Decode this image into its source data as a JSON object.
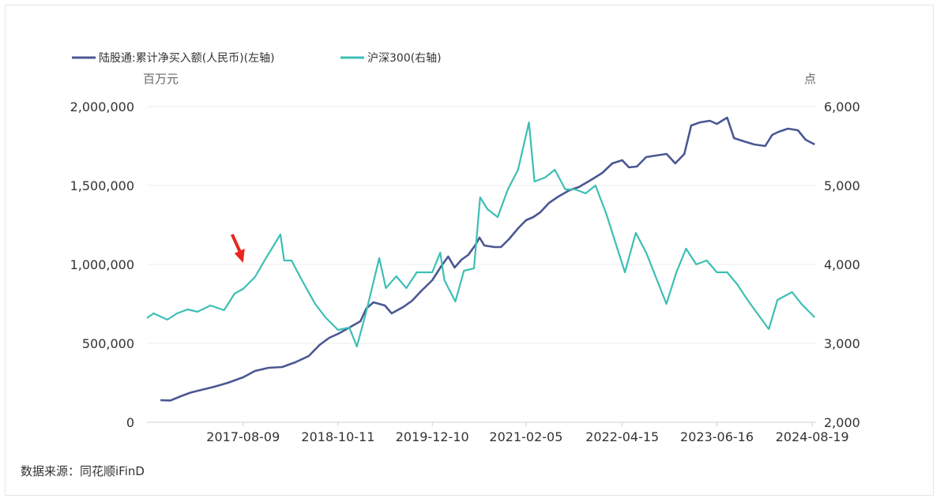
{
  "chart_data": {
    "type": "line",
    "left_unit": "百万元",
    "right_unit": "点",
    "x_tick_labels": [
      "2017-08-09",
      "2018-10-11",
      "2019-12-10",
      "2021-02-05",
      "2022-04-15",
      "2023-06-16",
      "2024-08-19"
    ],
    "y_left": {
      "ticks": [
        0,
        500000,
        1000000,
        1500000,
        2000000
      ],
      "tick_labels": [
        "0",
        "500,000",
        "1,000,000",
        "1,500,000",
        "2,000,000"
      ],
      "range": [
        0,
        2000000
      ]
    },
    "y_right": {
      "ticks": [
        2000,
        3000,
        4000,
        5000,
        6000
      ],
      "tick_labels": [
        "2,000",
        "3,000",
        "4,000",
        "5,000",
        "6,000"
      ],
      "range": [
        2000,
        6000
      ]
    },
    "x_range": [
      "2016-06-01",
      "2024-09-05"
    ],
    "grid": true,
    "legend_position": "top-left",
    "series": [
      {
        "name": "陆股通:累计净买入额(人民币)(左轴)",
        "axis": "left",
        "color": "#4b5793",
        "points": [
          [
            "2016-08-01",
            140000
          ],
          [
            "2016-09-15",
            138000
          ],
          [
            "2016-11-01",
            165000
          ],
          [
            "2016-12-15",
            188000
          ],
          [
            "2017-02-01",
            205000
          ],
          [
            "2017-04-01",
            225000
          ],
          [
            "2017-06-01",
            250000
          ],
          [
            "2017-08-09",
            285000
          ],
          [
            "2017-10-01",
            325000
          ],
          [
            "2017-12-01",
            345000
          ],
          [
            "2018-02-01",
            350000
          ],
          [
            "2018-04-01",
            380000
          ],
          [
            "2018-06-01",
            420000
          ],
          [
            "2018-07-20",
            490000
          ],
          [
            "2018-09-01",
            535000
          ],
          [
            "2018-10-11",
            560000
          ],
          [
            "2018-12-01",
            600000
          ],
          [
            "2019-01-20",
            640000
          ],
          [
            "2019-02-15",
            720000
          ],
          [
            "2019-03-20",
            760000
          ],
          [
            "2019-05-10",
            740000
          ],
          [
            "2019-06-10",
            690000
          ],
          [
            "2019-08-01",
            730000
          ],
          [
            "2019-09-10",
            770000
          ],
          [
            "2019-10-20",
            830000
          ],
          [
            "2019-12-10",
            900000
          ],
          [
            "2020-01-20",
            990000
          ],
          [
            "2020-02-20",
            1050000
          ],
          [
            "2020-03-20",
            980000
          ],
          [
            "2020-04-20",
            1030000
          ],
          [
            "2020-05-20",
            1060000
          ],
          [
            "2020-06-20",
            1120000
          ],
          [
            "2020-07-10",
            1170000
          ],
          [
            "2020-08-01",
            1120000
          ],
          [
            "2020-09-15",
            1110000
          ],
          [
            "2020-10-15",
            1110000
          ],
          [
            "2020-11-20",
            1160000
          ],
          [
            "2021-01-01",
            1230000
          ],
          [
            "2021-02-05",
            1280000
          ],
          [
            "2021-03-10",
            1300000
          ],
          [
            "2021-04-10",
            1330000
          ],
          [
            "2021-05-20",
            1390000
          ],
          [
            "2021-07-01",
            1430000
          ],
          [
            "2021-08-20",
            1470000
          ],
          [
            "2021-10-01",
            1490000
          ],
          [
            "2021-12-01",
            1540000
          ],
          [
            "2022-01-15",
            1580000
          ],
          [
            "2022-03-01",
            1640000
          ],
          [
            "2022-04-15",
            1660000
          ],
          [
            "2022-05-15",
            1615000
          ],
          [
            "2022-06-20",
            1620000
          ],
          [
            "2022-08-01",
            1680000
          ],
          [
            "2022-09-15",
            1690000
          ],
          [
            "2022-11-01",
            1700000
          ],
          [
            "2022-12-10",
            1640000
          ],
          [
            "2023-01-20",
            1700000
          ],
          [
            "2023-02-20",
            1880000
          ],
          [
            "2023-04-01",
            1900000
          ],
          [
            "2023-05-15",
            1910000
          ],
          [
            "2023-06-16",
            1890000
          ],
          [
            "2023-08-01",
            1930000
          ],
          [
            "2023-09-01",
            1800000
          ],
          [
            "2023-10-15",
            1780000
          ],
          [
            "2023-12-01",
            1760000
          ],
          [
            "2024-01-20",
            1750000
          ],
          [
            "2024-02-20",
            1820000
          ],
          [
            "2024-03-20",
            1840000
          ],
          [
            "2024-05-01",
            1860000
          ],
          [
            "2024-06-15",
            1850000
          ],
          [
            "2024-07-20",
            1790000
          ],
          [
            "2024-08-30",
            1760000
          ]
        ]
      },
      {
        "name": "沪深300(右轴)",
        "axis": "right",
        "color": "#3cbfb4",
        "points": [
          [
            "2016-06-01",
            3320
          ],
          [
            "2016-07-01",
            3380
          ],
          [
            "2016-08-01",
            3340
          ],
          [
            "2016-09-01",
            3300
          ],
          [
            "2016-10-15",
            3380
          ],
          [
            "2016-12-01",
            3430
          ],
          [
            "2017-01-15",
            3400
          ],
          [
            "2017-03-15",
            3480
          ],
          [
            "2017-05-15",
            3420
          ],
          [
            "2017-07-01",
            3630
          ],
          [
            "2017-08-09",
            3690
          ],
          [
            "2017-10-01",
            3840
          ],
          [
            "2017-11-20",
            4080
          ],
          [
            "2018-01-24",
            4380
          ],
          [
            "2018-02-10",
            4050
          ],
          [
            "2018-03-15",
            4050
          ],
          [
            "2018-05-01",
            3800
          ],
          [
            "2018-06-30",
            3500
          ],
          [
            "2018-08-15",
            3330
          ],
          [
            "2018-10-11",
            3170
          ],
          [
            "2018-12-01",
            3200
          ],
          [
            "2019-01-04",
            2960
          ],
          [
            "2019-02-15",
            3400
          ],
          [
            "2019-04-15",
            4080
          ],
          [
            "2019-05-15",
            3700
          ],
          [
            "2019-07-01",
            3850
          ],
          [
            "2019-08-15",
            3700
          ],
          [
            "2019-10-01",
            3900
          ],
          [
            "2019-12-10",
            3900
          ],
          [
            "2020-01-15",
            4150
          ],
          [
            "2020-02-03",
            3800
          ],
          [
            "2020-03-23",
            3530
          ],
          [
            "2020-05-01",
            3920
          ],
          [
            "2020-06-15",
            3950
          ],
          [
            "2020-07-13",
            4850
          ],
          [
            "2020-08-15",
            4700
          ],
          [
            "2020-09-30",
            4600
          ],
          [
            "2020-11-15",
            4950
          ],
          [
            "2020-12-31",
            5200
          ],
          [
            "2021-02-18",
            5800
          ],
          [
            "2021-03-15",
            5050
          ],
          [
            "2021-05-01",
            5100
          ],
          [
            "2021-06-15",
            5200
          ],
          [
            "2021-08-01",
            4950
          ],
          [
            "2021-09-15",
            4950
          ],
          [
            "2021-11-01",
            4900
          ],
          [
            "2021-12-15",
            5000
          ],
          [
            "2022-02-01",
            4650
          ],
          [
            "2022-04-27",
            3900
          ],
          [
            "2022-06-15",
            4400
          ],
          [
            "2022-08-01",
            4150
          ],
          [
            "2022-10-31",
            3500
          ],
          [
            "2022-12-15",
            3900
          ],
          [
            "2023-01-28",
            4200
          ],
          [
            "2023-03-15",
            4000
          ],
          [
            "2023-05-01",
            4050
          ],
          [
            "2023-06-16",
            3900
          ],
          [
            "2023-08-01",
            3900
          ],
          [
            "2023-09-15",
            3750
          ],
          [
            "2023-11-01",
            3550
          ],
          [
            "2023-12-15",
            3380
          ],
          [
            "2024-02-05",
            3180
          ],
          [
            "2024-03-15",
            3550
          ],
          [
            "2024-05-20",
            3650
          ],
          [
            "2024-07-01",
            3500
          ],
          [
            "2024-08-30",
            3330
          ]
        ]
      }
    ],
    "annotations": [
      {
        "type": "arrow",
        "color": "#e8271f",
        "at": [
          "2017-08-09",
          1010000
        ],
        "axis": "left"
      }
    ]
  },
  "footer": {
    "source": "数据来源：同花顺iFinD"
  }
}
